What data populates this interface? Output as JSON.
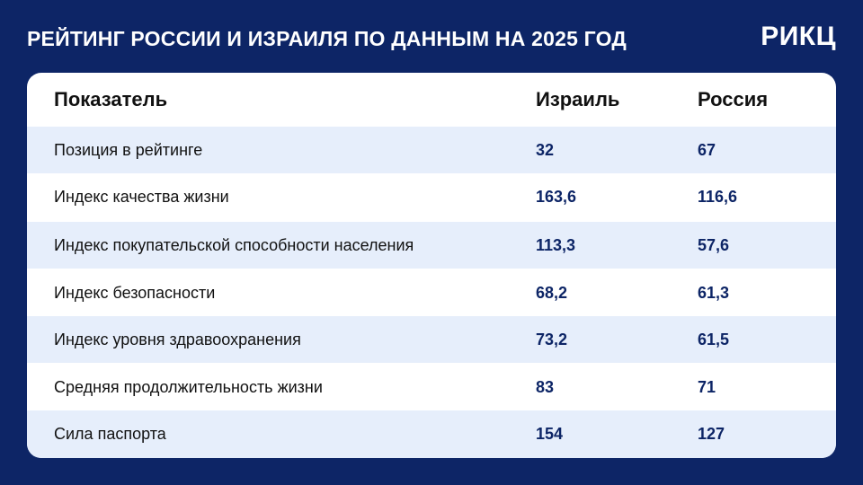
{
  "title": "РЕЙТИНГ РОССИИ И ИЗРАИЛЯ ПО ДАННЫМ НА 2025 ГОД",
  "logo": "РИКЦ",
  "table": {
    "headers": [
      "Показатель",
      "Израиль",
      "Россия"
    ],
    "rows": [
      {
        "label": "Позиция в рейтинге",
        "israel": "32",
        "russia": "67"
      },
      {
        "label": "Индекс качества жизни",
        "israel": "163,6",
        "russia": "116,6"
      },
      {
        "label": "Индекс покупательской способности населения",
        "israel": "113,3",
        "russia": "57,6"
      },
      {
        "label": "Индекс безопасности",
        "israel": "68,2",
        "russia": "61,3"
      },
      {
        "label": "Индекс уровня здравоохранения",
        "israel": "73,2",
        "russia": "61,5"
      },
      {
        "label": "Средняя продолжительность жизни",
        "israel": "83",
        "russia": "71"
      },
      {
        "label": "Сила паспорта",
        "israel": "154",
        "russia": "127"
      }
    ]
  },
  "colors": {
    "background": "#0d2566",
    "row_shade": "#e6eefb",
    "value_text": "#0d2566"
  }
}
